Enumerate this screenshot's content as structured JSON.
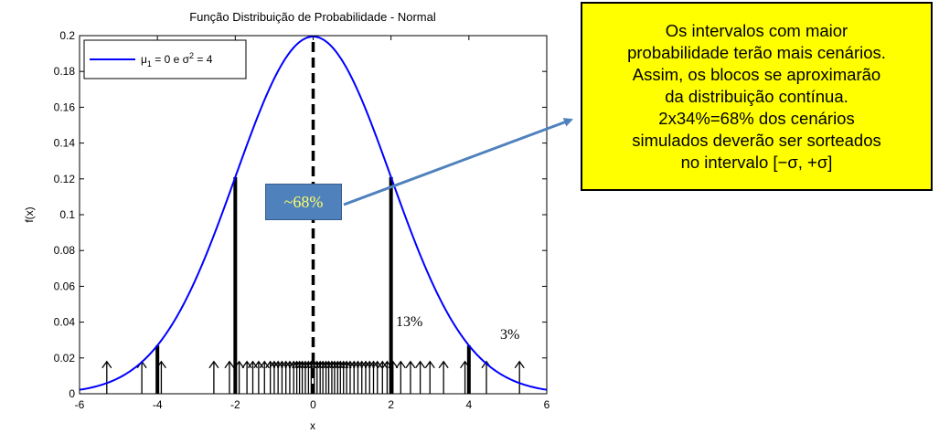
{
  "chart_data": {
    "type": "line",
    "title": "Função Distribuição de Probabilidade - Normal",
    "xlabel": "x",
    "ylabel": "f(x)",
    "xlim": [
      -6,
      6
    ],
    "ylim": [
      0,
      0.2
    ],
    "xticks": [
      "-6",
      "-4",
      "-2",
      "0",
      "2",
      "4",
      "6"
    ],
    "yticks": [
      "0",
      "0.02",
      "0.04",
      "0.06",
      "0.08",
      "0.1",
      "0.12",
      "0.14",
      "0.16",
      "0.18",
      "0.2"
    ],
    "legend": {
      "position": "top-left",
      "entry_main": "μ",
      "entry_sub": "1",
      "entry_mid": " = 0 e σ",
      "entry_sup": "2",
      "entry_end": " = 4"
    },
    "series": [
      {
        "kind": "pdf",
        "mu": 0,
        "sigma": 2,
        "color": "#0000ff"
      }
    ],
    "vertical_lines": [
      {
        "x": -4,
        "y": 0.027,
        "style": "solid"
      },
      {
        "x": -2,
        "y": 0.121,
        "style": "solid"
      },
      {
        "x": 0,
        "y": 0.2,
        "style": "dashed"
      },
      {
        "x": 2,
        "y": 0.121,
        "style": "solid"
      },
      {
        "x": 4,
        "y": 0.027,
        "style": "solid"
      }
    ],
    "sample_arrows_x": [
      -5.3,
      -4.4,
      -3.9,
      -2.55,
      -2.15,
      -1.9,
      -1.7,
      -1.55,
      -1.4,
      -1.25,
      -1.1,
      -1.0,
      -0.9,
      -0.8,
      -0.7,
      -0.6,
      -0.5,
      -0.42,
      -0.35,
      -0.28,
      -0.2,
      -0.12,
      -0.05,
      0.03,
      0.1,
      0.18,
      0.25,
      0.33,
      0.4,
      0.48,
      0.55,
      0.63,
      0.7,
      0.78,
      0.86,
      0.95,
      1.05,
      1.15,
      1.25,
      1.35,
      1.45,
      1.55,
      1.65,
      1.78,
      1.9,
      2.05,
      2.25,
      2.5,
      2.75,
      3.0,
      3.35,
      3.9,
      4.45,
      5.3
    ],
    "arrow_height": 0.018
  },
  "annotations": {
    "callout": "Os intervalos com maior\nprobabilidade terão mais cenários.\nAssim, os blocos se aproximarão\nda distribuição contínua.\n2x34%=68% dos cenários\nsimulados deverão ser sorteados\nno intervalo [−σ, +σ]",
    "center_pct": "~68%",
    "pct_13": "13%",
    "pct_3": "3%",
    "arrow_color": "#4f81bd",
    "callout_color": "#ffff00"
  }
}
